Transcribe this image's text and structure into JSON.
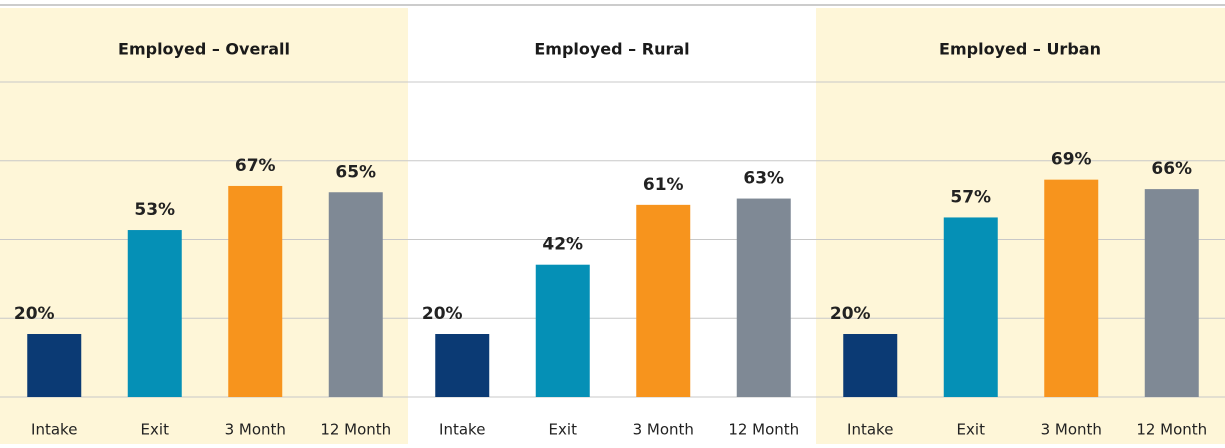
{
  "chart_data": [
    {
      "type": "bar",
      "title": "Employed – Overall",
      "categories": [
        "Intake",
        "Exit",
        "3 Month",
        "12 Month"
      ],
      "values": [
        20,
        53,
        67,
        65
      ],
      "value_labels": [
        "20%",
        "53%",
        "67%",
        "65%"
      ],
      "colors": [
        "#0b3a74",
        "#0590b6",
        "#f7941d",
        "#7f8995"
      ],
      "background": "#fef6d8",
      "ylim": [
        0,
        100
      ],
      "yticks": [
        0,
        25,
        50,
        75,
        100
      ],
      "grid": true
    },
    {
      "type": "bar",
      "title": "Employed – Rural",
      "categories": [
        "Intake",
        "Exit",
        "3 Month",
        "12 Month"
      ],
      "values": [
        20,
        42,
        61,
        63
      ],
      "value_labels": [
        "20%",
        "42%",
        "61%",
        "63%"
      ],
      "colors": [
        "#0b3a74",
        "#0590b6",
        "#f7941d",
        "#7f8995"
      ],
      "background": "#ffffff",
      "ylim": [
        0,
        100
      ],
      "yticks": [
        0,
        25,
        50,
        75,
        100
      ],
      "grid": true
    },
    {
      "type": "bar",
      "title": "Employed – Urban",
      "categories": [
        "Intake",
        "Exit",
        "3 Month",
        "12 Month"
      ],
      "values": [
        20,
        57,
        69,
        66
      ],
      "value_labels": [
        "20%",
        "57%",
        "69%",
        "66%"
      ],
      "colors": [
        "#0b3a74",
        "#0590b6",
        "#f7941d",
        "#7f8995"
      ],
      "background": "#fef6d8",
      "ylim": [
        0,
        100
      ],
      "yticks": [
        0,
        25,
        50,
        75,
        100
      ],
      "grid": true
    }
  ]
}
